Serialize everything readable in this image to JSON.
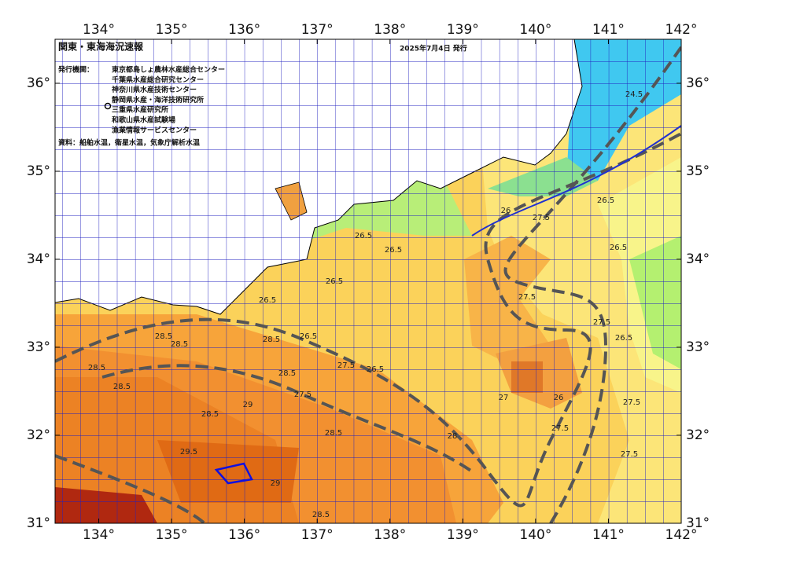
{
  "chart_data": {
    "type": "map",
    "title": "関東・東海海況速報",
    "date": "2025年7月4日 発行",
    "issuer_label": "発行機関：",
    "issuers": [
      "東京都島しょ農林水産総合センター",
      "千葉県水産総合研究センター",
      "神奈川県水産技術センター",
      "静岡県水産・海洋技術研究所",
      "三重県水産研究所",
      "和歌山県水産試験場",
      "漁業情報サービスセンター"
    ],
    "source": "資料：船舶水温，衛星水温，気象庁解析水温",
    "xlim": [
      133.4,
      142
    ],
    "ylim": [
      31,
      36.5
    ],
    "xticks": [
      {
        "value": 134,
        "label": "134°"
      },
      {
        "value": 135,
        "label": "135°"
      },
      {
        "value": 136,
        "label": "136°"
      },
      {
        "value": 137,
        "label": "137°"
      },
      {
        "value": 138,
        "label": "138°"
      },
      {
        "value": 139,
        "label": "139°"
      },
      {
        "value": 140,
        "label": "140°"
      },
      {
        "value": 141,
        "label": "141°"
      },
      {
        "value": 142,
        "label": "142°"
      }
    ],
    "yticks": [
      {
        "value": 31,
        "label": "31°"
      },
      {
        "value": 32,
        "label": "32°"
      },
      {
        "value": 33,
        "label": "33°"
      },
      {
        "value": 34,
        "label": "34°"
      },
      {
        "value": 35,
        "label": "35°"
      },
      {
        "value": 36,
        "label": "36°"
      }
    ],
    "contour_labels": [
      28.5,
      28.5,
      28.5,
      28.5,
      28.5,
      29,
      28.5,
      28.5,
      28.5,
      29.5,
      29,
      28.5,
      27.5,
      27.5,
      26.5,
      26.5,
      26.5,
      26.5,
      26.5,
      26.5,
      27.5,
      27.5,
      27.5,
      26.5,
      26.5,
      26.5,
      26,
      24.5,
      27.5,
      27.5,
      26,
      27,
      28,
      27.5
    ]
  }
}
